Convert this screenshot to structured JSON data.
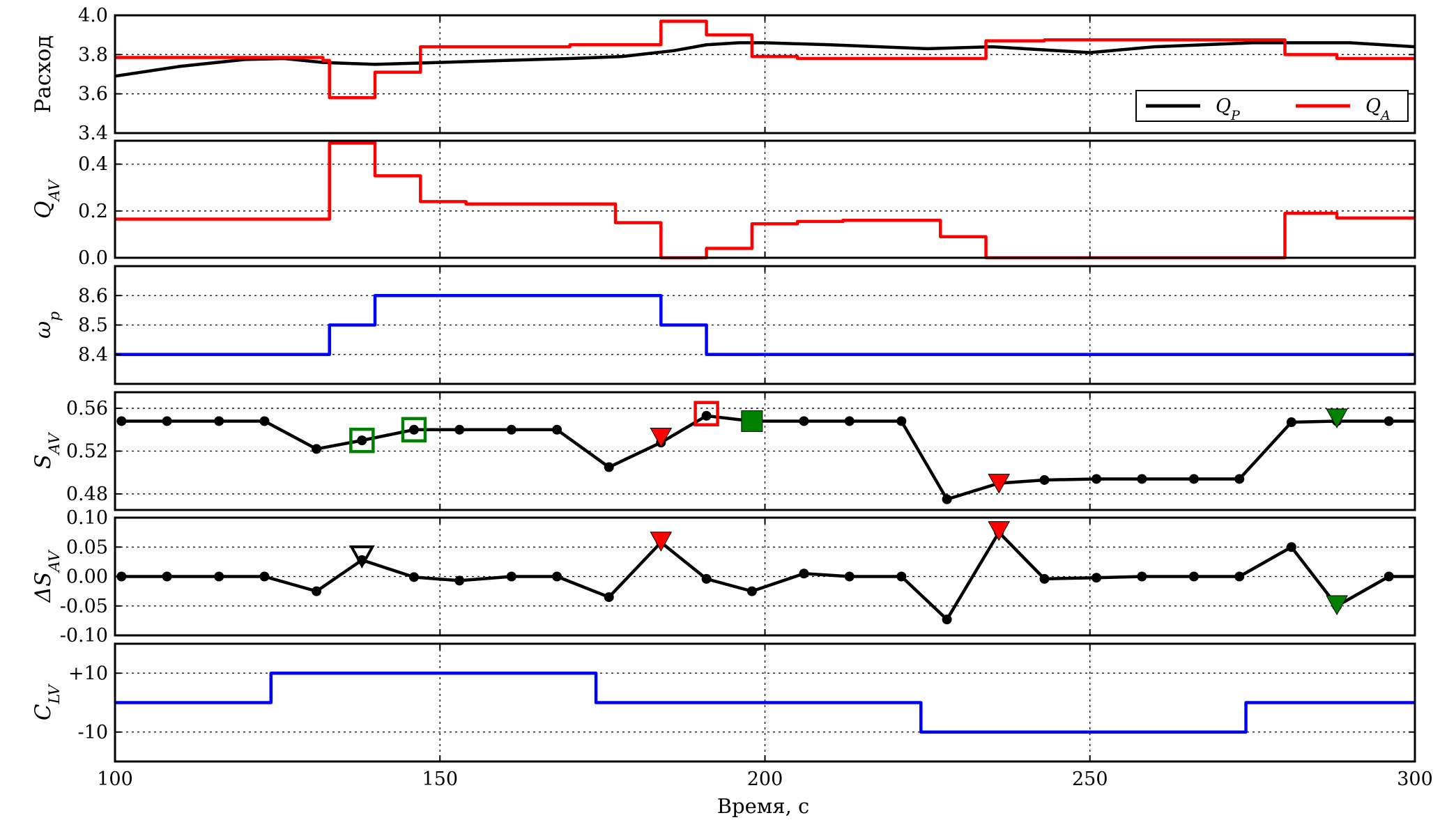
{
  "chart_data": {
    "type": "line",
    "xlabel": "Время, с",
    "xlim": [
      100,
      300
    ],
    "xticks": [
      100,
      150,
      200,
      250,
      300
    ],
    "xtick_labels": [
      "100",
      "150",
      "200",
      "250",
      "300"
    ],
    "grid": true,
    "panels": [
      {
        "id": "flow",
        "ylabel": "Расход",
        "ylim": [
          3.4,
          4.0
        ],
        "yticks": [
          3.4,
          3.6,
          3.8,
          4.0
        ],
        "ytick_labels": [
          "3.4",
          "3.6",
          "3.8",
          "4.0"
        ],
        "legend": {
          "placement": "bottom-right",
          "entries": [
            "Q_P",
            "Q_A"
          ]
        },
        "series": [
          {
            "name": "Q_P",
            "style": "line",
            "color": "#000000",
            "points": [
              [
                100,
                3.69
              ],
              [
                110,
                3.74
              ],
              [
                120,
                3.775
              ],
              [
                126,
                3.78
              ],
              [
                132,
                3.76
              ],
              [
                140,
                3.75
              ],
              [
                150,
                3.76
              ],
              [
                160,
                3.77
              ],
              [
                170,
                3.78
              ],
              [
                178,
                3.79
              ],
              [
                186,
                3.82
              ],
              [
                191,
                3.85
              ],
              [
                196,
                3.86
              ],
              [
                200,
                3.86
              ],
              [
                210,
                3.85
              ],
              [
                225,
                3.83
              ],
              [
                235,
                3.84
              ],
              [
                245,
                3.82
              ],
              [
                250,
                3.81
              ],
              [
                260,
                3.84
              ],
              [
                275,
                3.86
              ],
              [
                290,
                3.86
              ],
              [
                300,
                3.84
              ]
            ]
          },
          {
            "name": "Q_A",
            "style": "step",
            "color": "#ff0000",
            "points": [
              [
                100,
                3.785
              ],
              [
                125,
                3.785
              ],
              [
                132,
                3.77
              ],
              [
                133,
                3.58
              ],
              [
                140,
                3.71
              ],
              [
                147,
                3.84
              ],
              [
                170,
                3.85
              ],
              [
                184,
                3.97
              ],
              [
                191,
                3.9
              ],
              [
                198,
                3.79
              ],
              [
                205,
                3.78
              ],
              [
                234,
                3.87
              ],
              [
                243,
                3.875
              ],
              [
                280,
                3.8
              ],
              [
                288,
                3.78
              ],
              [
                300,
                3.78
              ]
            ]
          }
        ]
      },
      {
        "id": "qav",
        "ylabel": "Q_AV",
        "ylim": [
          0.0,
          0.5
        ],
        "yticks": [
          0.0,
          0.2,
          0.4
        ],
        "ytick_labels": [
          "0.0",
          "0.2",
          "0.4"
        ],
        "series": [
          {
            "name": "",
            "style": "step",
            "color": "#ff0000",
            "points": [
              [
                100,
                0.165
              ],
              [
                133,
                0.49
              ],
              [
                140,
                0.35
              ],
              [
                147,
                0.24
              ],
              [
                154,
                0.23
              ],
              [
                177,
                0.15
              ],
              [
                184,
                0.0
              ],
              [
                191,
                0.04
              ],
              [
                198,
                0.145
              ],
              [
                205,
                0.155
              ],
              [
                212,
                0.16
              ],
              [
                227,
                0.09
              ],
              [
                234,
                0.0
              ],
              [
                280,
                0.19
              ],
              [
                288,
                0.17
              ],
              [
                300,
                0.17
              ]
            ]
          }
        ]
      },
      {
        "id": "omega",
        "ylabel": "ω_p",
        "ylim": [
          8.3,
          8.7
        ],
        "yticks": [
          8.4,
          8.5,
          8.6
        ],
        "ytick_labels": [
          "8.4",
          "8.5",
          "8.6"
        ],
        "series": [
          {
            "name": "",
            "style": "step",
            "color": "#0000ff",
            "points": [
              [
                100,
                8.4
              ],
              [
                133,
                8.5
              ],
              [
                140,
                8.6
              ],
              [
                184,
                8.5
              ],
              [
                191,
                8.4
              ],
              [
                300,
                8.4
              ]
            ]
          }
        ]
      },
      {
        "id": "sav",
        "ylabel": "S_AV",
        "ylim": [
          0.465,
          0.575
        ],
        "yticks": [
          0.48,
          0.52,
          0.56
        ],
        "ytick_labels": [
          "0.48",
          "0.52",
          "0.56"
        ],
        "series": [
          {
            "name": "",
            "style": "line-dots",
            "color": "#000000",
            "points": [
              [
                101,
                0.548
              ],
              [
                108,
                0.548
              ],
              [
                116,
                0.548
              ],
              [
                123,
                0.548
              ],
              [
                131,
                0.522
              ],
              [
                138,
                0.53
              ],
              [
                146,
                0.54
              ],
              [
                153,
                0.54
              ],
              [
                161,
                0.54
              ],
              [
                168,
                0.54
              ],
              [
                176,
                0.505
              ],
              [
                184,
                0.528
              ],
              [
                191,
                0.553
              ],
              [
                198,
                0.548
              ],
              [
                206,
                0.548
              ],
              [
                213,
                0.548
              ],
              [
                221,
                0.548
              ],
              [
                228,
                0.475
              ],
              [
                236,
                0.49
              ],
              [
                243,
                0.493
              ],
              [
                251,
                0.494
              ],
              [
                258,
                0.494
              ],
              [
                266,
                0.494
              ],
              [
                273,
                0.494
              ],
              [
                281,
                0.547
              ],
              [
                288,
                0.548
              ],
              [
                296,
                0.548
              ],
              [
                300,
                0.548
              ]
            ]
          }
        ],
        "markers": [
          {
            "x": 138,
            "y": 0.53,
            "shape": "square-open",
            "color": "#008000"
          },
          {
            "x": 146,
            "y": 0.54,
            "shape": "square-open",
            "color": "#008000"
          },
          {
            "x": 184,
            "y": 0.533,
            "shape": "triangle-down",
            "color": "#ff0000"
          },
          {
            "x": 191,
            "y": 0.555,
            "shape": "square-open",
            "color": "#ff0000"
          },
          {
            "x": 198,
            "y": 0.548,
            "shape": "square-filled",
            "color": "#008000"
          },
          {
            "x": 236,
            "y": 0.49,
            "shape": "triangle-down",
            "color": "#ff0000"
          },
          {
            "x": 288,
            "y": 0.551,
            "shape": "triangle-down",
            "color": "#008000"
          }
        ]
      },
      {
        "id": "dsav",
        "ylabel": "ΔS_AV",
        "ylim": [
          -0.1,
          0.1
        ],
        "yticks": [
          -0.1,
          -0.05,
          0.0,
          0.05,
          0.1
        ],
        "ytick_labels": [
          "-0.10",
          "-0.05",
          "0.00",
          "0.05",
          "0.10"
        ],
        "series": [
          {
            "name": "",
            "style": "line-dots",
            "color": "#000000",
            "points": [
              [
                101,
                0.0
              ],
              [
                108,
                0.0
              ],
              [
                116,
                0.0
              ],
              [
                123,
                0.0
              ],
              [
                131,
                -0.025
              ],
              [
                138,
                0.028
              ],
              [
                146,
                -0.001
              ],
              [
                153,
                -0.007
              ],
              [
                161,
                0.0
              ],
              [
                168,
                0.0
              ],
              [
                176,
                -0.035
              ],
              [
                184,
                0.058
              ],
              [
                191,
                -0.004
              ],
              [
                198,
                -0.025
              ],
              [
                206,
                0.005
              ],
              [
                213,
                0.0
              ],
              [
                221,
                0.0
              ],
              [
                228,
                -0.073
              ],
              [
                236,
                0.075
              ],
              [
                243,
                -0.004
              ],
              [
                251,
                -0.002
              ],
              [
                258,
                0.0
              ],
              [
                266,
                0.0
              ],
              [
                273,
                0.0
              ],
              [
                281,
                0.05
              ],
              [
                288,
                -0.05
              ],
              [
                296,
                0.0
              ],
              [
                300,
                0.0
              ]
            ]
          }
        ],
        "markers": [
          {
            "x": 138,
            "y": 0.035,
            "shape": "triangle-down-open",
            "color": "#000000"
          },
          {
            "x": 184,
            "y": 0.06,
            "shape": "triangle-down",
            "color": "#ff0000"
          },
          {
            "x": 236,
            "y": 0.078,
            "shape": "triangle-down",
            "color": "#ff0000"
          },
          {
            "x": 288,
            "y": -0.048,
            "shape": "triangle-down",
            "color": "#008000"
          }
        ]
      },
      {
        "id": "clv",
        "ylabel": "C_LV",
        "ylim": [
          -20,
          20
        ],
        "yticks": [
          -10,
          10
        ],
        "ytick_labels": [
          "-10",
          "+10"
        ],
        "series": [
          {
            "name": "",
            "style": "step",
            "color": "#0000ff",
            "points": [
              [
                100,
                0
              ],
              [
                124,
                10
              ],
              [
                174,
                0
              ],
              [
                224,
                -10
              ],
              [
                274,
                0
              ],
              [
                300,
                0
              ]
            ]
          }
        ]
      }
    ]
  }
}
